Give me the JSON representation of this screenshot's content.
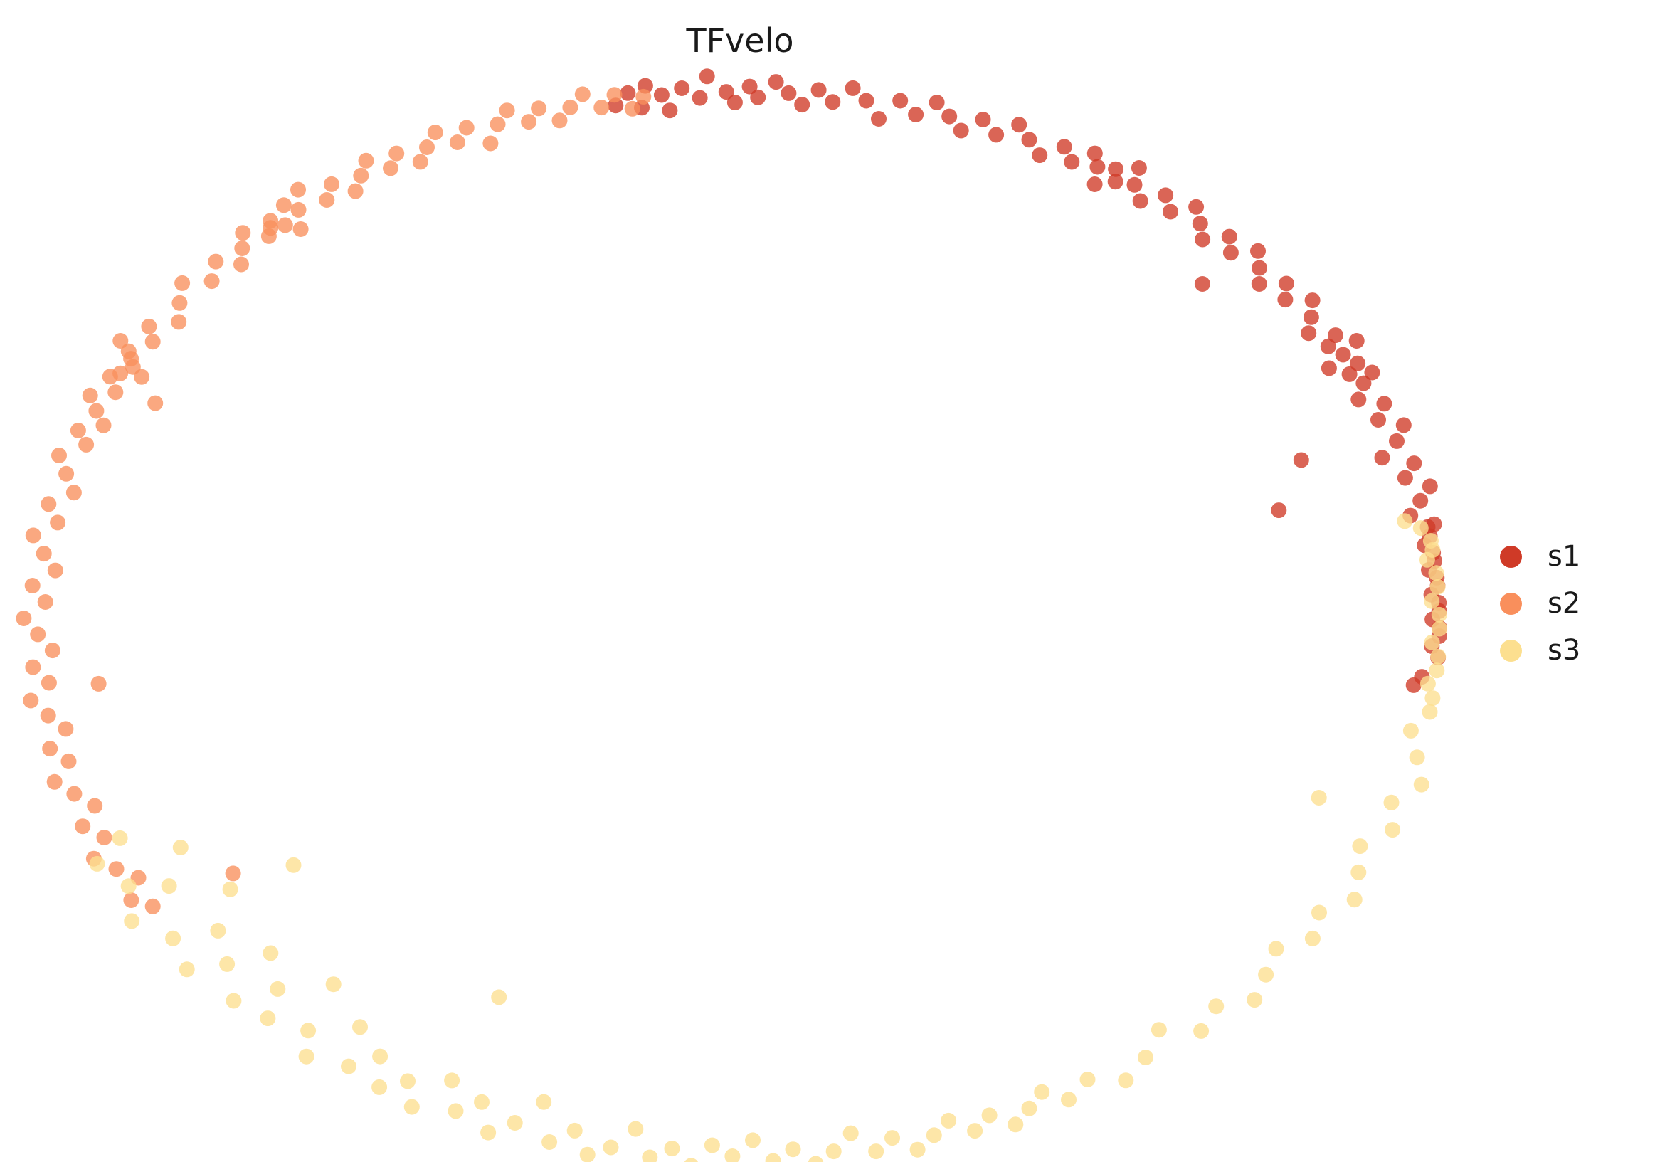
{
  "title": "TFvelo",
  "chart_data": {
    "type": "scatter",
    "title": "TFvelo",
    "background": "#ffffff",
    "axes": "hidden",
    "grid": false,
    "legend_position": "right",
    "legend_entries": [
      "s1",
      "s2",
      "s3"
    ],
    "point_radius": 11,
    "point_opacity": 0.78,
    "point_format": "[angle_deg, radius_scale] along the elliptical cycle embedding",
    "ellipse": {
      "cx": 1038,
      "cy": 877,
      "rx": 985,
      "ry": 748
    },
    "series": [
      {
        "name": "s1",
        "color": "#cf3a27",
        "points": [
          [
            100.2,
            0.99
          ],
          [
            99.0,
            1.01
          ],
          [
            98.1,
            0.98
          ],
          [
            97.5,
            1.02
          ],
          [
            96.3,
            1.0
          ],
          [
            95.8,
            0.97
          ],
          [
            94.6,
            1.01
          ],
          [
            93.2,
            0.99
          ],
          [
            92.5,
            1.03
          ],
          [
            91.0,
            1.0
          ],
          [
            90.3,
            0.98
          ],
          [
            89.1,
            1.01
          ],
          [
            88.4,
            0.99
          ],
          [
            87.0,
            1.02
          ],
          [
            85.9,
            1.0
          ],
          [
            84.7,
            0.98
          ],
          [
            83.5,
            1.01
          ],
          [
            82.2,
            0.99
          ],
          [
            80.8,
            1.02
          ],
          [
            79.5,
            1.0
          ],
          [
            78.1,
            0.97
          ],
          [
            76.8,
            1.01
          ],
          [
            75.2,
            0.99
          ],
          [
            73.9,
            1.02
          ],
          [
            72.5,
            1.0
          ],
          [
            71.1,
            0.98
          ],
          [
            69.8,
            1.01
          ],
          [
            68.2,
            0.99
          ],
          [
            66.9,
            1.02
          ],
          [
            65.5,
            1.0
          ],
          [
            64.0,
            0.98
          ],
          [
            62.6,
            1.01
          ],
          [
            61.3,
            0.99
          ],
          [
            60.1,
            1.02
          ],
          [
            59.2,
            1.0
          ],
          [
            58.4,
            0.97
          ],
          [
            57.8,
            1.01
          ],
          [
            57.1,
            0.99
          ],
          [
            56.3,
            1.03
          ],
          [
            55.6,
            1.0
          ],
          [
            54.2,
            0.98
          ],
          [
            52.9,
            1.01
          ],
          [
            51.5,
            0.99
          ],
          [
            50.2,
            1.02
          ],
          [
            48.8,
            1.0
          ],
          [
            47.5,
            0.98
          ],
          [
            46.1,
            1.01
          ],
          [
            44.8,
            0.99
          ],
          [
            44.0,
            0.92
          ],
          [
            43.4,
            1.02
          ],
          [
            42.0,
            1.0
          ],
          [
            40.7,
            0.98
          ],
          [
            39.3,
            1.01
          ],
          [
            38.0,
            0.99
          ],
          [
            36.6,
            1.02
          ],
          [
            35.2,
            1.0
          ],
          [
            33.9,
            0.98
          ],
          [
            32.5,
            1.01
          ],
          [
            31.8,
            0.99
          ],
          [
            31.1,
            1.03
          ],
          [
            30.4,
            1.0
          ],
          [
            29.7,
            0.97
          ],
          [
            29.0,
            1.01
          ],
          [
            28.3,
            0.99
          ],
          [
            27.6,
            1.02
          ],
          [
            26.9,
            1.0
          ],
          [
            25.5,
            0.98
          ],
          [
            24.2,
            1.01
          ],
          [
            22.8,
            0.99
          ],
          [
            21.5,
            1.02
          ],
          [
            21.0,
            0.86
          ],
          [
            20.1,
            1.0
          ],
          [
            18.8,
            0.97
          ],
          [
            17.4,
            1.01
          ],
          [
            16.1,
            0.99
          ],
          [
            15.5,
            0.8
          ],
          [
            14.7,
            1.02
          ],
          [
            13.4,
            1.0
          ],
          [
            12.0,
            0.98
          ],
          [
            10.7,
            1.01
          ],
          [
            10.5,
            1.0
          ],
          [
            9.5,
            1.0
          ],
          [
            8.6,
            0.99
          ],
          [
            7.7,
            1.0
          ],
          [
            6.8,
            1.0
          ],
          [
            5.9,
            0.99
          ],
          [
            5.0,
            1.0
          ],
          [
            4.1,
            1.0
          ],
          [
            3.2,
            0.99
          ],
          [
            2.3,
            1.0
          ],
          [
            1.4,
            1.0
          ],
          [
            0.5,
            0.99
          ],
          [
            -0.4,
            1.0
          ],
          [
            -1.3,
            1.0
          ],
          [
            -2.4,
            0.99
          ],
          [
            -3.6,
            1.0
          ],
          [
            -5.8,
            0.98
          ],
          [
            -6.8,
            0.97
          ]
        ]
      },
      {
        "name": "s2",
        "color": "#f98f5c",
        "points": [
          [
            97.8,
            1.0
          ],
          [
            98.9,
            0.98
          ],
          [
            100.1,
            1.01
          ],
          [
            101.4,
            0.99
          ],
          [
            102.6,
            1.02
          ],
          [
            103.9,
            1.0
          ],
          [
            105.1,
            0.98
          ],
          [
            106.4,
            1.01
          ],
          [
            107.6,
            0.99
          ],
          [
            108.9,
            1.02
          ],
          [
            110.1,
            1.0
          ],
          [
            111.4,
            0.97
          ],
          [
            112.6,
            1.01
          ],
          [
            113.9,
            0.99
          ],
          [
            115.1,
            1.02
          ],
          [
            116.4,
            1.0
          ],
          [
            117.6,
            0.98
          ],
          [
            118.9,
            1.01
          ],
          [
            120.1,
            0.99
          ],
          [
            121.4,
            1.02
          ],
          [
            122.6,
            1.0
          ],
          [
            123.9,
            0.98
          ],
          [
            125.1,
            1.01
          ],
          [
            126.4,
            0.99
          ],
          [
            127.6,
            1.03
          ],
          [
            128.9,
            1.0
          ],
          [
            129.5,
            1.02
          ],
          [
            130.1,
            0.97
          ],
          [
            130.8,
            0.99
          ],
          [
            131.4,
            1.01
          ],
          [
            131.9,
            1.0
          ],
          [
            132.6,
            0.99
          ],
          [
            133.9,
            1.02
          ],
          [
            135.1,
            1.0
          ],
          [
            136.4,
            0.98
          ],
          [
            137.6,
            1.01
          ],
          [
            139.4,
            0.99
          ],
          [
            141.1,
            1.02
          ],
          [
            142.9,
            1.0
          ],
          [
            144.6,
            0.98
          ],
          [
            146.4,
            1.01
          ],
          [
            147.6,
            0.99
          ],
          [
            148.9,
            1.03
          ],
          [
            149.5,
            1.01
          ],
          [
            150.1,
            1.0
          ],
          [
            150.8,
            0.99
          ],
          [
            151.4,
            0.97
          ],
          [
            151.9,
            1.0
          ],
          [
            152.6,
            1.01
          ],
          [
            153.5,
            0.93
          ],
          [
            153.9,
            0.99
          ],
          [
            155.1,
            1.02
          ],
          [
            156.4,
            1.0
          ],
          [
            157.6,
            0.98
          ],
          [
            158.9,
            1.01
          ],
          [
            160.1,
            0.99
          ],
          [
            161.9,
            1.02
          ],
          [
            163.6,
            1.0
          ],
          [
            165.4,
            0.98
          ],
          [
            167.1,
            1.01
          ],
          [
            168.9,
            0.99
          ],
          [
            170.6,
            1.02
          ],
          [
            172.4,
            1.0
          ],
          [
            174.1,
            0.98
          ],
          [
            175.9,
            1.01
          ],
          [
            177.6,
            0.99
          ],
          [
            179.4,
            1.02
          ],
          [
            181.1,
            1.0
          ],
          [
            182.9,
            0.98
          ],
          [
            184.6,
            1.01
          ],
          [
            186.4,
            0.99
          ],
          [
            187.0,
            0.92
          ],
          [
            188.1,
            1.02
          ],
          [
            189.9,
            1.0
          ],
          [
            191.6,
            0.98
          ],
          [
            193.4,
            1.01
          ],
          [
            195.1,
            0.99
          ],
          [
            196.9,
            1.02
          ],
          [
            198.6,
            1.0
          ],
          [
            200.4,
            0.98
          ],
          [
            202.1,
            1.01
          ],
          [
            203.9,
            0.99
          ],
          [
            205.6,
            1.02
          ],
          [
            207.4,
            1.0
          ],
          [
            209.1,
            0.98
          ],
          [
            210.9,
            1.01
          ],
          [
            212.4,
            0.99
          ],
          [
            213.0,
            0.86
          ]
        ]
      },
      {
        "name": "s3",
        "color": "#fcdf8f",
        "points": [
          [
            204.5,
            0.97
          ],
          [
            206.2,
            1.02
          ],
          [
            207.8,
            0.9
          ],
          [
            209.5,
            1.0
          ],
          [
            211.2,
            0.95
          ],
          [
            212.8,
            1.03
          ],
          [
            214.5,
            0.88
          ],
          [
            215.5,
            0.78
          ],
          [
            216.2,
            1.0
          ],
          [
            217.8,
            0.94
          ],
          [
            219.5,
            1.02
          ],
          [
            221.2,
            0.97
          ],
          [
            222.8,
            0.91
          ],
          [
            224.5,
            1.01
          ],
          [
            226.2,
            0.95
          ],
          [
            227.8,
            1.0
          ],
          [
            229.5,
            0.89
          ],
          [
            231.2,
            0.98
          ],
          [
            232.8,
            1.02
          ],
          [
            234.5,
            0.93
          ],
          [
            236.2,
            1.0
          ],
          [
            237.8,
            0.96
          ],
          [
            239.5,
            1.01
          ],
          [
            241.2,
            0.98
          ],
          [
            242.8,
            1.02
          ],
          [
            244.0,
            0.78
          ],
          [
            244.5,
            0.95
          ],
          [
            246.2,
            1.0
          ],
          [
            247.8,
            0.97
          ],
          [
            249.5,
            1.02
          ],
          [
            251.2,
            0.99
          ],
          [
            252.8,
            0.94
          ],
          [
            254.5,
            1.01
          ],
          [
            256.2,
            0.98
          ],
          [
            257.8,
            1.02
          ],
          [
            259.5,
            1.0
          ],
          [
            261.2,
            0.96
          ],
          [
            262.8,
            1.01
          ],
          [
            264.5,
            0.99
          ],
          [
            266.2,
            1.02
          ],
          [
            267.8,
            0.98
          ],
          [
            269.5,
            1.0
          ],
          [
            271.2,
            0.97
          ],
          [
            272.8,
            1.01
          ],
          [
            274.5,
            0.99
          ],
          [
            276.2,
            1.02
          ],
          [
            277.8,
            1.0
          ],
          [
            279.5,
            0.97
          ],
          [
            281.2,
            1.01
          ],
          [
            282.8,
            0.99
          ],
          [
            284.5,
            1.02
          ],
          [
            286.2,
            1.0
          ],
          [
            287.8,
            0.98
          ],
          [
            289.5,
            1.01
          ],
          [
            291.2,
            0.99
          ],
          [
            292.8,
            1.02
          ],
          [
            294.5,
            1.0
          ],
          [
            296.2,
            0.98
          ],
          [
            297.8,
            1.01
          ],
          [
            300.2,
            0.99
          ],
          [
            302.8,
            1.02
          ],
          [
            305.5,
            1.0
          ],
          [
            308.2,
            0.97
          ],
          [
            310.8,
            1.01
          ],
          [
            313.5,
            0.99
          ],
          [
            316.2,
            1.02
          ],
          [
            318.8,
            1.0
          ],
          [
            321.5,
            0.98
          ],
          [
            324.2,
            1.01
          ],
          [
            326.8,
            0.99
          ],
          [
            329.5,
            1.02
          ],
          [
            332.2,
            1.0
          ],
          [
            334.8,
            0.98
          ],
          [
            337.5,
            1.01
          ],
          [
            338.5,
            0.89
          ],
          [
            340.2,
            0.99
          ],
          [
            342.8,
            1.02
          ],
          [
            345.5,
            1.0
          ],
          [
            348.2,
            0.98
          ],
          [
            350.5,
            1.0
          ],
          [
            352.0,
            1.0
          ],
          [
            353.5,
            0.99
          ],
          [
            355.0,
            1.0
          ],
          [
            356.5,
            1.0
          ],
          [
            358.0,
            0.99
          ],
          [
            359.5,
            1.0
          ],
          [
            361.0,
            1.0
          ],
          [
            362.5,
            0.99
          ],
          [
            364.0,
            1.0
          ],
          [
            365.5,
            1.0
          ],
          [
            367.0,
            0.99
          ],
          [
            368.0,
            1.0
          ],
          [
            369.0,
            1.0
          ],
          [
            370.5,
            0.99
          ],
          [
            371.5,
            0.97
          ]
        ]
      }
    ]
  }
}
